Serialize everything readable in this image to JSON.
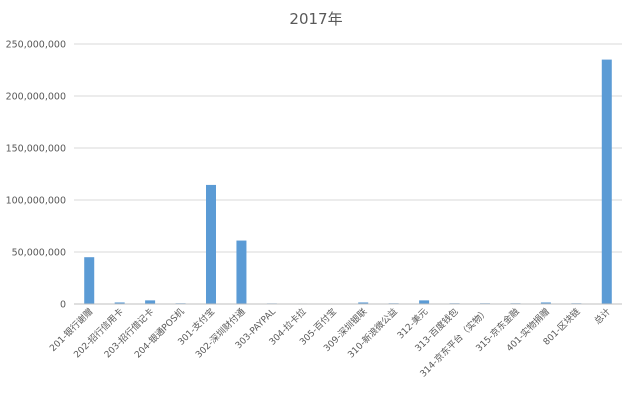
{
  "chart_data": {
    "type": "bar",
    "title": "2017年",
    "xlabel": "",
    "ylabel": "",
    "ylim": [
      0,
      250000000
    ],
    "yticks": [
      0,
      50000000,
      100000000,
      150000000,
      200000000,
      250000000
    ],
    "ytick_labels": [
      "0",
      "50,000,000",
      "100,000,000",
      "150,000,000",
      "200,000,000",
      "250,000,000"
    ],
    "grid": true,
    "legend": "none",
    "bar_color": "#5b9bd5",
    "categories": [
      "201-银行谢赠",
      "202-招行信用卡",
      "203-招行借记卡",
      "204-银通POS机",
      "301-支付宝",
      "302-深圳财付通",
      "303-PAYPAL",
      "304-拉卡拉",
      "305-百付宝",
      "309-深圳银联",
      "310-新浪微公益",
      "312-美元",
      "313-百度钱包",
      "314-京东平台（实物）",
      "315-京东金融",
      "401-实物捐赠",
      "801-区块链",
      "总计"
    ],
    "values": [
      45000000,
      1500000,
      3500000,
      700000,
      114500000,
      61000000,
      600000,
      500000,
      0,
      1500000,
      700000,
      3500000,
      700000,
      700000,
      700000,
      1500000,
      700000,
      235000000
    ]
  }
}
